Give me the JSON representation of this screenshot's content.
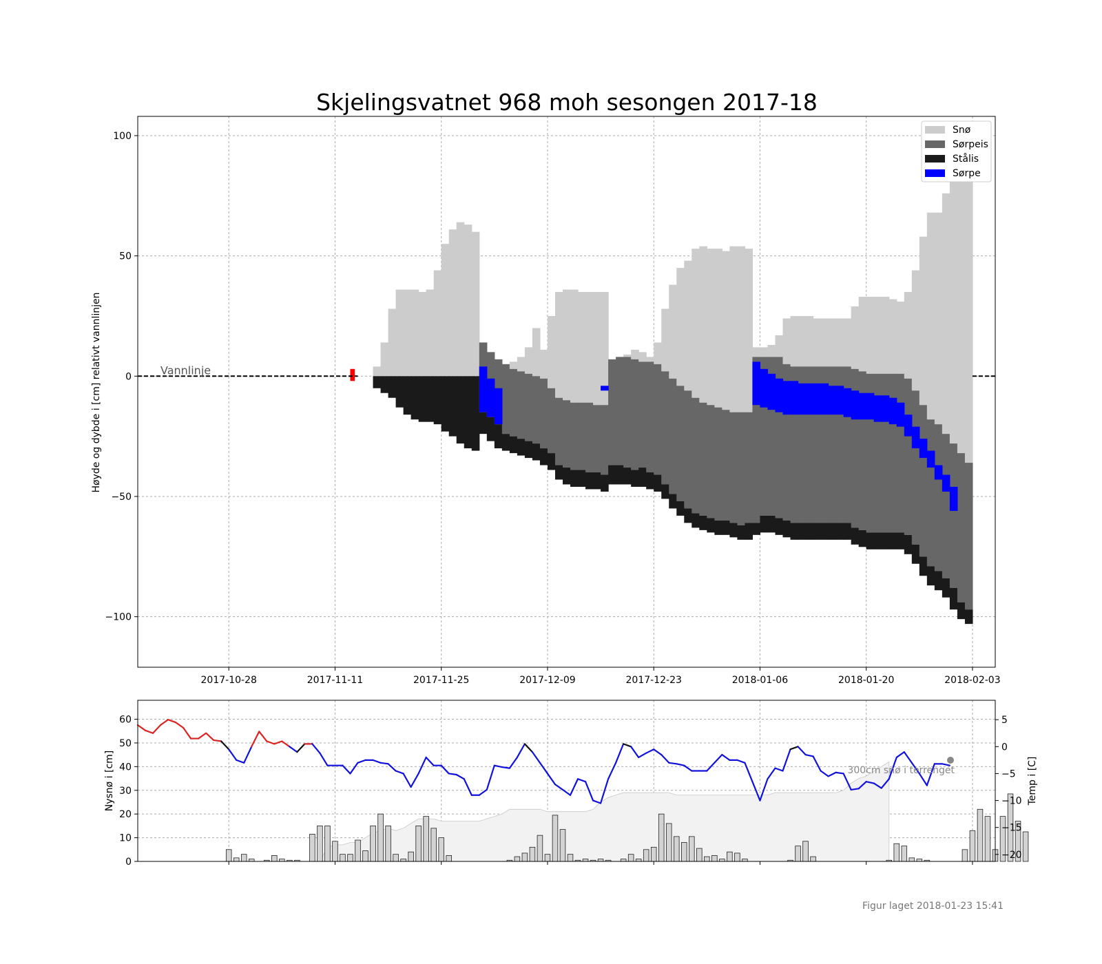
{
  "title": "Skjelingsvatnet 968 moh sesongen 2017-18",
  "footer": "Figur laget 2018-01-23 15:41",
  "colors": {
    "snow": "#cccccc",
    "slush_ice": "#676767",
    "black_ice": "#1a1a1a",
    "slush": "#0000ff",
    "warm": "#dd2222",
    "neutral": "#111111",
    "cold": "#1111dd",
    "snow_area": "#f2f2f2",
    "bars": "#d3d3d3",
    "first_ice": "#ff0000"
  },
  "chart_data": [
    {
      "type": "bar",
      "name": "ice-profile",
      "ylabel": "Høyde og dybde i [cm] relativt vannlinjen",
      "ylim": [
        -121,
        108
      ],
      "yticks": [
        100,
        50,
        0,
        -50,
        -100
      ],
      "ytick_labels": [
        "100",
        "50",
        "0",
        "−50",
        "−100"
      ],
      "xlim": [
        "2017-10-16",
        "2018-02-06"
      ],
      "xticks": [
        "2017-10-28",
        "2017-11-11",
        "2017-11-25",
        "2017-12-09",
        "2017-12-23",
        "2018-01-06",
        "2018-01-20",
        "2018-02-03"
      ],
      "grid": true,
      "legend_position": "top-right",
      "legend": [
        {
          "label": "Snø",
          "color_key": "snow"
        },
        {
          "label": "Sørpeis",
          "color_key": "slush_ice"
        },
        {
          "label": "Stålis",
          "color_key": "black_ice"
        },
        {
          "label": "Sørpe",
          "color_key": "slush"
        }
      ],
      "waterline": {
        "label": "Vannlinje",
        "value": 0
      },
      "first_ice": {
        "date": "2017-11-13",
        "top": 3,
        "bottom": -2
      },
      "profile": {
        "start": "2017-11-14",
        "snow_top": [
          0,
          0,
          4,
          14,
          28,
          36,
          36,
          36,
          35,
          36,
          44,
          55,
          61,
          64,
          63,
          60,
          14,
          10,
          7,
          5,
          6,
          8,
          12,
          20,
          11,
          25,
          35,
          36,
          36,
          35,
          35,
          35,
          35,
          7,
          8,
          9,
          11,
          10,
          8,
          14,
          28,
          38,
          45,
          48,
          53,
          54,
          53,
          53,
          52,
          54,
          54,
          53,
          12,
          12,
          13,
          17,
          24,
          25,
          25,
          25,
          24,
          24,
          24,
          24,
          24,
          29,
          33,
          33,
          33,
          33,
          32,
          31,
          35,
          44,
          58,
          68,
          68,
          76,
          82,
          96,
          98
        ],
        "snow_bottom": [
          0,
          0,
          0,
          0,
          0,
          0,
          0,
          0,
          0,
          0,
          0,
          0,
          0,
          0,
          0,
          0,
          14,
          10,
          7,
          5,
          3,
          2,
          1,
          0,
          -1,
          -5,
          -9,
          -10,
          -11,
          -11,
          -11,
          -12,
          -12,
          7,
          8,
          8,
          7,
          6,
          6,
          5,
          2,
          -1,
          -4,
          -6,
          -9,
          -11,
          -12,
          -13,
          -14,
          -15,
          -15,
          -15,
          8,
          8,
          8,
          8,
          5,
          4,
          4,
          4,
          4,
          4,
          4,
          4,
          4,
          3,
          2,
          1,
          1,
          1,
          1,
          1,
          -1,
          -6,
          -12,
          -18,
          -20,
          -24,
          -28,
          -32,
          -36
        ],
        "slushice_bottom": [
          0,
          0,
          0,
          0,
          0,
          0,
          0,
          0,
          0,
          0,
          0,
          0,
          0,
          0,
          0,
          0,
          -15,
          -17,
          -20,
          -24,
          -25,
          -26,
          -27,
          -28,
          -30,
          -32,
          -37,
          -38,
          -39,
          -39,
          -40,
          -40,
          -41,
          -37,
          -37,
          -38,
          -39,
          -38,
          -40,
          -41,
          -45,
          -49,
          -52,
          -55,
          -57,
          -58,
          -59,
          -60,
          -60,
          -61,
          -62,
          -61,
          -61,
          -58,
          -58,
          -59,
          -60,
          -61,
          -61,
          -61,
          -61,
          -61,
          -61,
          -61,
          -61,
          -63,
          -64,
          -65,
          -65,
          -65,
          -65,
          -65,
          -66,
          -70,
          -75,
          -79,
          -81,
          -84,
          -88,
          -94,
          -97
        ],
        "blackice_bottom": [
          0,
          0,
          -5,
          -7,
          -9,
          -13,
          -16,
          -18,
          -19,
          -19,
          -20,
          -23,
          -25,
          -28,
          -30,
          -31,
          -24,
          -27,
          -30,
          -31,
          -32,
          -33,
          -34,
          -35,
          -37,
          -39,
          -43,
          -45,
          -46,
          -46,
          -47,
          -47,
          -48,
          -45,
          -45,
          -45,
          -46,
          -46,
          -47,
          -48,
          -51,
          -55,
          -58,
          -61,
          -63,
          -64,
          -65,
          -66,
          -66,
          -67,
          -68,
          -68,
          -66,
          -65,
          -65,
          -66,
          -67,
          -68,
          -68,
          -68,
          -68,
          -68,
          -68,
          -68,
          -68,
          -70,
          -71,
          -72,
          -72,
          -72,
          -72,
          -72,
          -74,
          -78,
          -83,
          -87,
          -89,
          -92,
          -97,
          -101,
          -103
        ],
        "slush_layers": [
          {
            "start": "2017-11-30",
            "top": [
              4,
              -1,
              -5
            ],
            "bottom": [
              -15,
              -17,
              -20
            ]
          },
          {
            "start": "2017-12-16",
            "top": [
              -4
            ],
            "bottom": [
              -6
            ]
          },
          {
            "start": "2018-01-05",
            "top": [
              6,
              3,
              1,
              -1,
              -2,
              -2,
              -3,
              -3,
              -3,
              -3,
              -4,
              -4,
              -5,
              -6,
              -7,
              -7,
              -8,
              -8,
              -9,
              -11,
              -16,
              -21,
              -26,
              -31,
              -37,
              -41,
              -46
            ],
            "bottom": [
              -12,
              -13,
              -14,
              -15,
              -16,
              -16,
              -16,
              -16,
              -16,
              -16,
              -16,
              -16,
              -17,
              -18,
              -18,
              -18,
              -19,
              -19,
              -20,
              -21,
              -25,
              -30,
              -34,
              -38,
              -43,
              -48,
              -56
            ]
          }
        ]
      }
    },
    {
      "type": "bar",
      "name": "weather",
      "ylabel": "Nysnø i [cm]",
      "y2label": "Temp i [C]",
      "ylim": [
        0,
        68
      ],
      "yticks": [
        0,
        10,
        20,
        30,
        40,
        50,
        60
      ],
      "y2lim": [
        -21.3,
        8.6
      ],
      "y2ticks": [
        5,
        0,
        -5,
        -10,
        -15,
        -20
      ],
      "y2tick_labels": [
        "5",
        "0",
        "−5",
        "−10",
        "−15",
        "−20"
      ],
      "xlim": [
        "2017-10-16",
        "2018-02-06"
      ],
      "grid": true,
      "annotation": "300cm snø i terrenget",
      "bars": {
        "start": "2017-10-28",
        "new_snow": [
          5,
          1.5,
          3,
          1,
          0,
          0.5,
          2.5,
          1,
          0.5,
          0.5,
          0,
          11.5,
          15,
          15,
          8.5,
          3,
          3,
          9,
          4.5,
          15,
          20,
          15,
          3,
          1,
          4,
          15,
          19,
          14,
          10,
          2.5,
          0,
          0,
          0,
          0,
          0,
          0,
          0,
          0.5,
          2,
          3.5,
          6,
          11,
          3,
          19.5,
          13.5,
          3,
          0.5,
          1,
          0.5,
          1,
          0.5,
          0,
          1,
          3,
          1,
          5,
          6,
          20,
          16,
          10.5,
          8,
          10.5,
          5.5,
          2,
          2.5,
          1,
          4,
          3.5,
          1,
          0,
          0,
          0,
          0,
          0,
          0.5,
          6.5,
          8.5,
          2,
          0,
          0,
          0,
          0,
          0,
          0,
          0,
          0,
          0,
          0.5,
          7.5,
          6.5,
          1.5,
          1,
          0.5,
          0,
          0,
          0,
          0,
          5,
          13,
          22,
          19,
          5,
          19,
          28.5,
          17,
          12.5
        ]
      },
      "snow_depth": {
        "start": "2017-11-09",
        "values": [
          0,
          6,
          7,
          7,
          8,
          8,
          10,
          12,
          13,
          14,
          13,
          14,
          16,
          18,
          18,
          18,
          17,
          17,
          17,
          17,
          17,
          17,
          18,
          19,
          20,
          22,
          22,
          22,
          22,
          22,
          21,
          21,
          21,
          21,
          21,
          21,
          22,
          25,
          27,
          28,
          29,
          29,
          29,
          29,
          29,
          29,
          29,
          28,
          28,
          28,
          28,
          28,
          28,
          28,
          28,
          28,
          28,
          28,
          28,
          28,
          29,
          29,
          29,
          29,
          29,
          29,
          29,
          29,
          29,
          30,
          33,
          35,
          36,
          38,
          40,
          42
        ]
      },
      "temperature": {
        "start": "2017-10-16",
        "values": [
          4,
          3,
          2.5,
          4,
          5,
          4.5,
          3.5,
          1.5,
          1.5,
          2.5,
          1.2,
          1,
          -0.5,
          -2.5,
          -3,
          0,
          2.8,
          1,
          0.5,
          1,
          0,
          -1,
          0.5,
          0.5,
          -1.2,
          -3.5,
          -3.5,
          -3.5,
          -5,
          -3,
          -2.5,
          -2.5,
          -3,
          -3.2,
          -4.5,
          -5,
          -7.5,
          -5,
          -2,
          -3.5,
          -3.5,
          -5,
          -5.2,
          -6,
          -9,
          -9,
          -8,
          -3.5,
          -3.8,
          -4,
          -2,
          0.5,
          -1,
          -3,
          -5,
          -7,
          -8,
          -9,
          -6,
          -6.5,
          -10,
          -10.5,
          -6,
          -3,
          0.5,
          0,
          -2,
          -1.2,
          -0.5,
          -1.5,
          -3,
          -3.2,
          -3.5,
          -4.5,
          -4.5,
          -4.5,
          -3,
          -1.5,
          -2.5,
          -2.5,
          -3,
          -6.5,
          -10,
          -6,
          -4,
          -4.5,
          -0.5,
          0,
          -1.5,
          -1.8,
          -4.5,
          -5.5,
          -4.8,
          -5,
          -8,
          -7.8,
          -6.5,
          -6.8,
          -7.7,
          -6,
          -2,
          -1,
          -3,
          -5,
          -7.2,
          -3.2,
          -3.2,
          -3.5
        ]
      }
    }
  ]
}
